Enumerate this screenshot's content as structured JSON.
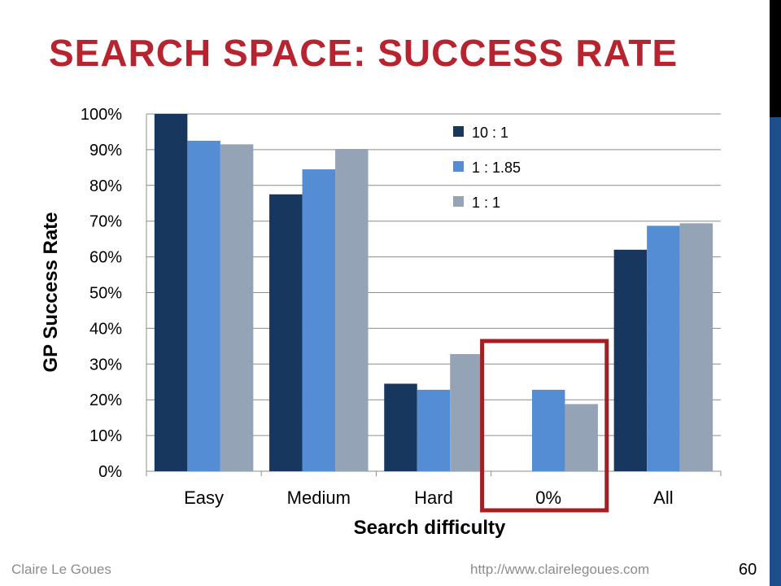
{
  "slide": {
    "title": "SEARCH SPACE: SUCCESS RATE",
    "author": "Claire Le Goues",
    "url": "http://www.clairelegoues.com",
    "page_number": "60",
    "highlight_color": "#a51e22",
    "title_color": "#b5242f"
  },
  "chart_data": {
    "type": "bar",
    "categories": [
      "Easy",
      "Medium",
      "Hard",
      "0%",
      "All"
    ],
    "series": [
      {
        "name": "10 : 1",
        "color": "#17375e",
        "values": [
          100,
          77.5,
          24.5,
          0,
          62
        ]
      },
      {
        "name": "1 : 1.85",
        "color": "#548dd4",
        "values": [
          92.5,
          84.5,
          22.8,
          22.8,
          68.7
        ]
      },
      {
        "name": "1 : 1",
        "color": "#95a3b7",
        "values": [
          91.5,
          90.2,
          32.8,
          18.8,
          69.4
        ]
      }
    ],
    "title": "",
    "xlabel": "Search difficulty",
    "ylabel": "GP Success Rate",
    "ylim": [
      0,
      100
    ],
    "yticks": [
      "0%",
      "10%",
      "20%",
      "30%",
      "40%",
      "50%",
      "60%",
      "70%",
      "80%",
      "90%",
      "100%"
    ],
    "grid": true,
    "legend_position": "top-right",
    "highlighted_category": "0%"
  }
}
